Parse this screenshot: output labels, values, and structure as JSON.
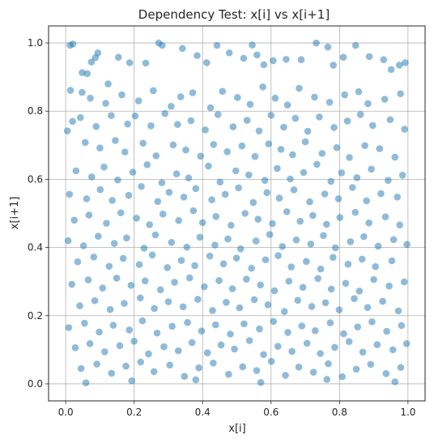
{
  "chart_data": {
    "type": "scatter",
    "title": "Dependency Test: x[i] vs x[i+1]",
    "xlabel": "x[i]",
    "ylabel": "x[i+1]",
    "xlim": [
      -0.05,
      1.05
    ],
    "ylim": [
      -0.05,
      1.05
    ],
    "xticks": [
      0.0,
      0.2,
      0.4,
      0.6,
      0.8,
      1.0
    ],
    "yticks": [
      0.0,
      0.2,
      0.4,
      0.6,
      0.8,
      1.0
    ],
    "xtick_labels": [
      "0.0",
      "0.2",
      "0.4",
      "0.6",
      "0.8",
      "1.0"
    ],
    "ytick_labels": [
      "0.0",
      "0.2",
      "0.4",
      "0.6",
      "0.8",
      "1.0"
    ],
    "grid": true,
    "marker_color": "#1f77b4",
    "marker_alpha": 0.5,
    "points": [
      [
        0.013,
        0.993
      ],
      [
        0.021,
        0.997
      ],
      [
        0.048,
        0.913
      ],
      [
        0.063,
        0.91
      ],
      [
        0.075,
        0.944
      ],
      [
        0.087,
        0.957
      ],
      [
        0.094,
        0.971
      ],
      [
        0.124,
        0.88
      ],
      [
        0.154,
        0.958
      ],
      [
        0.187,
        0.942
      ],
      [
        0.234,
        0.941
      ],
      [
        0.272,
        1.0
      ],
      [
        0.282,
        0.993
      ],
      [
        0.341,
        0.984
      ],
      [
        0.384,
        0.963
      ],
      [
        0.412,
        0.942
      ],
      [
        0.442,
        0.993
      ],
      [
        0.478,
        0.971
      ],
      [
        0.52,
        0.955
      ],
      [
        0.545,
        0.994
      ],
      [
        0.559,
        0.965
      ],
      [
        0.579,
        0.936
      ],
      [
        0.606,
        0.948
      ],
      [
        0.644,
        0.952
      ],
      [
        0.688,
        0.951
      ],
      [
        0.732,
        1.0
      ],
      [
        0.766,
        0.988
      ],
      [
        0.782,
        0.935
      ],
      [
        0.811,
        0.958
      ],
      [
        0.847,
        0.993
      ],
      [
        0.887,
        0.96
      ],
      [
        0.929,
        0.951
      ],
      [
        0.951,
        0.922
      ],
      [
        0.975,
        0.935
      ],
      [
        0.992,
        0.942
      ],
      [
        0.014,
        0.861
      ],
      [
        0.048,
        0.855
      ],
      [
        0.072,
        0.838
      ],
      [
        0.117,
        0.823
      ],
      [
        0.164,
        0.848
      ],
      [
        0.213,
        0.83
      ],
      [
        0.256,
        0.86
      ],
      [
        0.308,
        0.814
      ],
      [
        0.336,
        0.842
      ],
      [
        0.371,
        0.854
      ],
      [
        0.423,
        0.81
      ],
      [
        0.458,
        0.858
      ],
      [
        0.502,
        0.84
      ],
      [
        0.539,
        0.82
      ],
      [
        0.576,
        0.871
      ],
      [
        0.612,
        0.838
      ],
      [
        0.648,
        0.818
      ],
      [
        0.682,
        0.867
      ],
      [
        0.727,
        0.841
      ],
      [
        0.771,
        0.826
      ],
      [
        0.815,
        0.848
      ],
      [
        0.856,
        0.857
      ],
      [
        0.883,
        0.822
      ],
      [
        0.932,
        0.835
      ],
      [
        0.978,
        0.851
      ],
      [
        0.02,
        0.77
      ],
      [
        0.043,
        0.781
      ],
      [
        0.089,
        0.755
      ],
      [
        0.133,
        0.787
      ],
      [
        0.181,
        0.762
      ],
      [
        0.203,
        0.786
      ],
      [
        0.249,
        0.757
      ],
      [
        0.29,
        0.793
      ],
      [
        0.327,
        0.761
      ],
      [
        0.366,
        0.772
      ],
      [
        0.408,
        0.745
      ],
      [
        0.445,
        0.79
      ],
      [
        0.489,
        0.754
      ],
      [
        0.53,
        0.773
      ],
      [
        0.565,
        0.742
      ],
      [
        0.6,
        0.788
      ],
      [
        0.637,
        0.753
      ],
      [
        0.671,
        0.779
      ],
      [
        0.707,
        0.741
      ],
      [
        0.741,
        0.783
      ],
      [
        0.784,
        0.752
      ],
      [
        0.823,
        0.771
      ],
      [
        0.861,
        0.79
      ],
      [
        0.897,
        0.758
      ],
      [
        0.948,
        0.775
      ],
      [
        0.99,
        0.747
      ],
      [
        0.005,
        0.742
      ],
      [
        0.057,
        0.708
      ],
      [
        0.1,
        0.692
      ],
      [
        0.145,
        0.714
      ],
      [
        0.173,
        0.68
      ],
      [
        0.226,
        0.706
      ],
      [
        0.264,
        0.669
      ],
      [
        0.314,
        0.701
      ],
      [
        0.351,
        0.686
      ],
      [
        0.394,
        0.668
      ],
      [
        0.432,
        0.702
      ],
      [
        0.472,
        0.681
      ],
      [
        0.515,
        0.698
      ],
      [
        0.553,
        0.667
      ],
      [
        0.593,
        0.704
      ],
      [
        0.629,
        0.688
      ],
      [
        0.663,
        0.672
      ],
      [
        0.7,
        0.71
      ],
      [
        0.749,
        0.676
      ],
      [
        0.792,
        0.693
      ],
      [
        0.829,
        0.664
      ],
      [
        0.874,
        0.699
      ],
      [
        0.917,
        0.69
      ],
      [
        0.962,
        0.665
      ],
      [
        0.03,
        0.625
      ],
      [
        0.076,
        0.607
      ],
      [
        0.112,
        0.636
      ],
      [
        0.152,
        0.598
      ],
      [
        0.196,
        0.621
      ],
      [
        0.238,
        0.643
      ],
      [
        0.281,
        0.59
      ],
      [
        0.324,
        0.616
      ],
      [
        0.359,
        0.604
      ],
      [
        0.417,
        0.639
      ],
      [
        0.451,
        0.592
      ],
      [
        0.497,
        0.625
      ],
      [
        0.535,
        0.613
      ],
      [
        0.582,
        0.597
      ],
      [
        0.618,
        0.632
      ],
      [
        0.656,
        0.601
      ],
      [
        0.695,
        0.62
      ],
      [
        0.734,
        0.644
      ],
      [
        0.775,
        0.594
      ],
      [
        0.806,
        0.619
      ],
      [
        0.851,
        0.605
      ],
      [
        0.893,
        0.63
      ],
      [
        0.942,
        0.597
      ],
      [
        0.984,
        0.612
      ],
      [
        0.011,
        0.556
      ],
      [
        0.061,
        0.543
      ],
      [
        0.101,
        0.57
      ],
      [
        0.136,
        0.538
      ],
      [
        0.184,
        0.553
      ],
      [
        0.221,
        0.579
      ],
      [
        0.269,
        0.535
      ],
      [
        0.302,
        0.562
      ],
      [
        0.345,
        0.548
      ],
      [
        0.38,
        0.573
      ],
      [
        0.427,
        0.54
      ],
      [
        0.466,
        0.556
      ],
      [
        0.505,
        0.575
      ],
      [
        0.548,
        0.532
      ],
      [
        0.588,
        0.561
      ],
      [
        0.624,
        0.545
      ],
      [
        0.667,
        0.569
      ],
      [
        0.713,
        0.534
      ],
      [
        0.757,
        0.557
      ],
      [
        0.797,
        0.543
      ],
      [
        0.838,
        0.576
      ],
      [
        0.879,
        0.537
      ],
      [
        0.921,
        0.558
      ],
      [
        0.969,
        0.548
      ],
      [
        0.025,
        0.48
      ],
      [
        0.068,
        0.495
      ],
      [
        0.119,
        0.471
      ],
      [
        0.161,
        0.502
      ],
      [
        0.207,
        0.486
      ],
      [
        0.245,
        0.467
      ],
      [
        0.284,
        0.498
      ],
      [
        0.33,
        0.479
      ],
      [
        0.373,
        0.508
      ],
      [
        0.4,
        0.473
      ],
      [
        0.439,
        0.491
      ],
      [
        0.483,
        0.465
      ],
      [
        0.524,
        0.5
      ],
      [
        0.562,
        0.483
      ],
      [
        0.604,
        0.47
      ],
      [
        0.646,
        0.505
      ],
      [
        0.685,
        0.477
      ],
      [
        0.722,
        0.494
      ],
      [
        0.762,
        0.468
      ],
      [
        0.801,
        0.488
      ],
      [
        0.846,
        0.503
      ],
      [
        0.886,
        0.472
      ],
      [
        0.934,
        0.49
      ],
      [
        0.976,
        0.466
      ],
      [
        0.007,
        0.42
      ],
      [
        0.052,
        0.405
      ],
      [
        0.095,
        0.433
      ],
      [
        0.142,
        0.412
      ],
      [
        0.178,
        0.428
      ],
      [
        0.229,
        0.398
      ],
      [
        0.262,
        0.437
      ],
      [
        0.309,
        0.415
      ],
      [
        0.354,
        0.401
      ],
      [
        0.392,
        0.43
      ],
      [
        0.436,
        0.407
      ],
      [
        0.474,
        0.425
      ],
      [
        0.511,
        0.396
      ],
      [
        0.556,
        0.419
      ],
      [
        0.596,
        0.438
      ],
      [
        0.633,
        0.403
      ],
      [
        0.674,
        0.422
      ],
      [
        0.716,
        0.41
      ],
      [
        0.753,
        0.435
      ],
      [
        0.788,
        0.399
      ],
      [
        0.832,
        0.417
      ],
      [
        0.871,
        0.432
      ],
      [
        0.913,
        0.404
      ],
      [
        0.958,
        0.423
      ],
      [
        0.997,
        0.409
      ],
      [
        0.035,
        0.358
      ],
      [
        0.082,
        0.372
      ],
      [
        0.127,
        0.345
      ],
      [
        0.168,
        0.368
      ],
      [
        0.215,
        0.35
      ],
      [
        0.253,
        0.378
      ],
      [
        0.297,
        0.341
      ],
      [
        0.338,
        0.362
      ],
      [
        0.377,
        0.347
      ],
      [
        0.421,
        0.375
      ],
      [
        0.461,
        0.352
      ],
      [
        0.499,
        0.369
      ],
      [
        0.543,
        0.339
      ],
      [
        0.584,
        0.364
      ],
      [
        0.621,
        0.376
      ],
      [
        0.659,
        0.343
      ],
      [
        0.703,
        0.359
      ],
      [
        0.745,
        0.337
      ],
      [
        0.781,
        0.371
      ],
      [
        0.825,
        0.351
      ],
      [
        0.866,
        0.366
      ],
      [
        0.905,
        0.344
      ],
      [
        0.953,
        0.361
      ],
      [
        0.018,
        0.292
      ],
      [
        0.066,
        0.305
      ],
      [
        0.108,
        0.281
      ],
      [
        0.149,
        0.31
      ],
      [
        0.191,
        0.289
      ],
      [
        0.232,
        0.302
      ],
      [
        0.277,
        0.276
      ],
      [
        0.318,
        0.298
      ],
      [
        0.362,
        0.311
      ],
      [
        0.405,
        0.285
      ],
      [
        0.448,
        0.303
      ],
      [
        0.487,
        0.279
      ],
      [
        0.528,
        0.307
      ],
      [
        0.569,
        0.29
      ],
      [
        0.61,
        0.273
      ],
      [
        0.652,
        0.301
      ],
      [
        0.693,
        0.283
      ],
      [
        0.737,
        0.309
      ],
      [
        0.776,
        0.278
      ],
      [
        0.818,
        0.295
      ],
      [
        0.858,
        0.272
      ],
      [
        0.9,
        0.306
      ],
      [
        0.945,
        0.287
      ],
      [
        0.989,
        0.299
      ],
      [
        0.041,
        0.229
      ],
      [
        0.085,
        0.244
      ],
      [
        0.13,
        0.218
      ],
      [
        0.171,
        0.236
      ],
      [
        0.218,
        0.252
      ],
      [
        0.259,
        0.221
      ],
      [
        0.3,
        0.241
      ],
      [
        0.343,
        0.226
      ],
      [
        0.386,
        0.248
      ],
      [
        0.429,
        0.215
      ],
      [
        0.469,
        0.239
      ],
      [
        0.508,
        0.223
      ],
      [
        0.551,
        0.247
      ],
      [
        0.591,
        0.232
      ],
      [
        0.639,
        0.212
      ],
      [
        0.678,
        0.245
      ],
      [
        0.719,
        0.227
      ],
      [
        0.759,
        0.238
      ],
      [
        0.799,
        0.217
      ],
      [
        0.843,
        0.25
      ],
      [
        0.882,
        0.224
      ],
      [
        0.926,
        0.242
      ],
      [
        0.972,
        0.214
      ],
      [
        0.009,
        0.165
      ],
      [
        0.055,
        0.178
      ],
      [
        0.098,
        0.152
      ],
      [
        0.139,
        0.172
      ],
      [
        0.186,
        0.158
      ],
      [
        0.224,
        0.185
      ],
      [
        0.267,
        0.149
      ],
      [
        0.311,
        0.169
      ],
      [
        0.356,
        0.18
      ],
      [
        0.397,
        0.155
      ],
      [
        0.438,
        0.173
      ],
      [
        0.481,
        0.146
      ],
      [
        0.521,
        0.176
      ],
      [
        0.566,
        0.161
      ],
      [
        0.607,
        0.183
      ],
      [
        0.649,
        0.151
      ],
      [
        0.69,
        0.17
      ],
      [
        0.729,
        0.156
      ],
      [
        0.773,
        0.179
      ],
      [
        0.812,
        0.147
      ],
      [
        0.853,
        0.167
      ],
      [
        0.895,
        0.182
      ],
      [
        0.938,
        0.154
      ],
      [
        0.981,
        0.171
      ],
      [
        0.028,
        0.106
      ],
      [
        0.071,
        0.118
      ],
      [
        0.114,
        0.094
      ],
      [
        0.158,
        0.112
      ],
      [
        0.2,
        0.125
      ],
      [
        0.242,
        0.088
      ],
      [
        0.287,
        0.109
      ],
      [
        0.329,
        0.097
      ],
      [
        0.369,
        0.121
      ],
      [
        0.414,
        0.091
      ],
      [
        0.454,
        0.114
      ],
      [
        0.493,
        0.102
      ],
      [
        0.537,
        0.127
      ],
      [
        0.578,
        0.086
      ],
      [
        0.62,
        0.11
      ],
      [
        0.661,
        0.095
      ],
      [
        0.705,
        0.119
      ],
      [
        0.744,
        0.089
      ],
      [
        0.786,
        0.107
      ],
      [
        0.828,
        0.124
      ],
      [
        0.868,
        0.093
      ],
      [
        0.91,
        0.115
      ],
      [
        0.956,
        0.1
      ],
      [
        0.996,
        0.118
      ],
      [
        0.045,
        0.045
      ],
      [
        0.091,
        0.058
      ],
      [
        0.134,
        0.031
      ],
      [
        0.176,
        0.052
      ],
      [
        0.219,
        0.064
      ],
      [
        0.258,
        0.036
      ],
      [
        0.304,
        0.055
      ],
      [
        0.347,
        0.022
      ],
      [
        0.389,
        0.047
      ],
      [
        0.431,
        0.061
      ],
      [
        0.476,
        0.028
      ],
      [
        0.517,
        0.05
      ],
      [
        0.558,
        0.039
      ],
      [
        0.601,
        0.066
      ],
      [
        0.642,
        0.025
      ],
      [
        0.681,
        0.049
      ],
      [
        0.724,
        0.034
      ],
      [
        0.767,
        0.059
      ],
      [
        0.808,
        0.021
      ],
      [
        0.849,
        0.043
      ],
      [
        0.891,
        0.057
      ],
      [
        0.936,
        0.03
      ],
      [
        0.979,
        0.048
      ],
      [
        0.059,
        0.003
      ],
      [
        0.193,
        0.009
      ],
      [
        0.38,
        0.012
      ],
      [
        0.57,
        0.004
      ],
      [
        0.763,
        0.013
      ],
      [
        0.962,
        0.006
      ]
    ]
  }
}
